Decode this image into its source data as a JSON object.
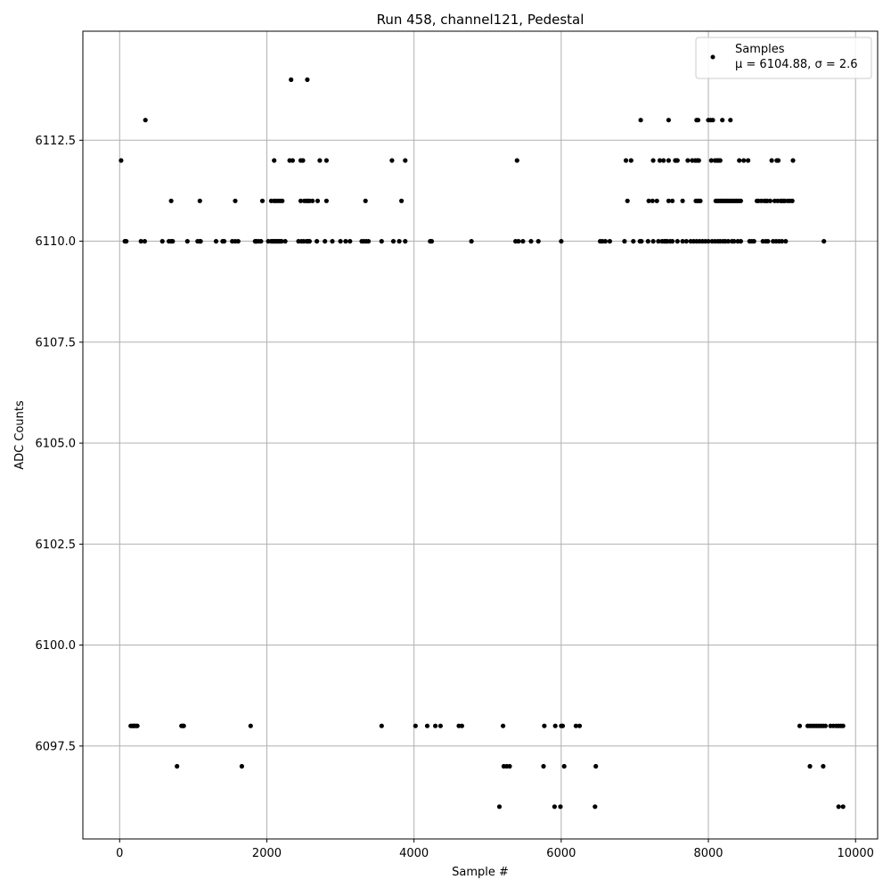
{
  "chart_data": {
    "type": "scatter",
    "title": "Run 458, channel121, Pedestal",
    "xlabel": "Sample #",
    "ylabel": "ADC Counts",
    "xlim": [
      -500,
      10300
    ],
    "ylim": [
      6095.2,
      6115.2
    ],
    "x_ticks": [
      0,
      2000,
      4000,
      6000,
      8000,
      10000
    ],
    "x_tick_labels": [
      "0",
      "2000",
      "4000",
      "6000",
      "8000",
      "10000"
    ],
    "y_ticks": [
      6097.5,
      6100.0,
      6102.5,
      6105.0,
      6107.5,
      6110.0,
      6112.5
    ],
    "y_tick_labels": [
      "6097.5",
      "6100.0",
      "6102.5",
      "6105.0",
      "6107.5",
      "6110.0",
      "6112.5"
    ],
    "grid": true,
    "legend_position": "top-right",
    "legend": {
      "series_name": "Samples",
      "stats_text": "μ = 6104.88, σ = 2.6"
    },
    "series": [
      {
        "name": "Samples",
        "color": "#000000",
        "n_samples": 9850,
        "x_range": [
          0,
          9850
        ],
        "sample_x_step": 1,
        "levels": [
          {
            "y": 6114,
            "x": [
              2330,
              2550
            ]
          },
          {
            "y": 6113,
            "x": [
              350,
              7080,
              7460,
              7840,
              7860,
              8000,
              8030,
              8060,
              8190,
              8300
            ]
          },
          {
            "y": 6112,
            "x": [
              20,
              2100,
              2310,
              2350,
              2460,
              2490,
              2720,
              2810,
              3700,
              3880,
              5400,
              6880,
              6950,
              7250,
              7340,
              7390,
              7460,
              7550,
              7560,
              7580,
              7720,
              7780,
              7820,
              7850,
              7870,
              8040,
              8090,
              8120,
              8140,
              8160,
              8420,
              8480,
              8540,
              8860,
              8930,
              8950,
              9150
            ]
          },
          {
            "y": 6111,
            "x": [
              700,
              1090,
              1570,
              1940,
              2060,
              2100,
              2120,
              2150,
              2180,
              2210,
              2460,
              2510,
              2540,
              2560,
              2580,
              2620,
              2690,
              2810,
              3340,
              3830,
              6900,
              7190,
              7240,
              7300,
              7460,
              7510,
              7650,
              7830,
              7850,
              7870,
              7890,
              8100,
              8120,
              8140,
              8160,
              8180,
              8200,
              8220,
              8240,
              8260,
              8280,
              8300,
              8320,
              8340,
              8360,
              8380,
              8400,
              8420,
              8440,
              8660,
              8680,
              8720,
              8760,
              8780,
              8800,
              8840,
              8900,
              8940,
              8980,
              9000,
              9020,
              9040,
              9080,
              9110,
              9140
            ]
          },
          {
            "y": 6110,
            "x": [
              70,
              90,
              290,
              340,
              580,
              670,
              700,
              720,
              920,
              1060,
              1090,
              1100,
              1310,
              1400,
              1420,
              1530,
              1570,
              1610,
              1840,
              1850,
              1860,
              1890,
              1920,
              2020,
              2060,
              2080,
              2100,
              2120,
              2140,
              2160,
              2180,
              2200,
              2250,
              2430,
              2470,
              2500,
              2540,
              2560,
              2580,
              2680,
              2790,
              2890,
              3000,
              3070,
              3130,
              3290,
              3320,
              3350,
              3380,
              3560,
              3720,
              3800,
              3880,
              4220,
              4240,
              4780,
              5380,
              5420,
              5480,
              5590,
              5690,
              6000,
              6530,
              6560,
              6600,
              6660,
              6860,
              6980,
              7070,
              7090,
              7180,
              7250,
              7320,
              7370,
              7400,
              7420,
              7440,
              7480,
              7510,
              7580,
              7650,
              7700,
              7760,
              7800,
              7840,
              7880,
              7920,
              7960,
              8000,
              8050,
              8090,
              8130,
              8160,
              8200,
              8230,
              8270,
              8320,
              8350,
              8400,
              8440,
              8560,
              8590,
              8620,
              8740,
              8780,
              8810,
              8880,
              8920,
              8960,
              9000,
              9050,
              9570
            ]
          },
          {
            "y": 6096,
            "x": [
              5160,
              5910,
              5990,
              6460,
              9770,
              9830
            ]
          },
          {
            "y": 6097,
            "x": [
              780,
              1660,
              5220,
              5260,
              5300,
              5760,
              6040,
              6470,
              9380,
              9560
            ]
          },
          {
            "y": 6098,
            "x": [
              150,
              170,
              190,
              200,
              220,
              240,
              840,
              860,
              870,
              1780,
              3560,
              4020,
              4180,
              4290,
              4360,
              4610,
              4650,
              5210,
              5770,
              5920,
              6000,
              6020,
              6200,
              6250,
              9240,
              9350,
              9380,
              9410,
              9440,
              9470,
              9500,
              9530,
              9560,
              9590,
              9660,
              9700,
              9740,
              9770,
              9800,
              9830
            ]
          }
        ]
      }
    ]
  }
}
